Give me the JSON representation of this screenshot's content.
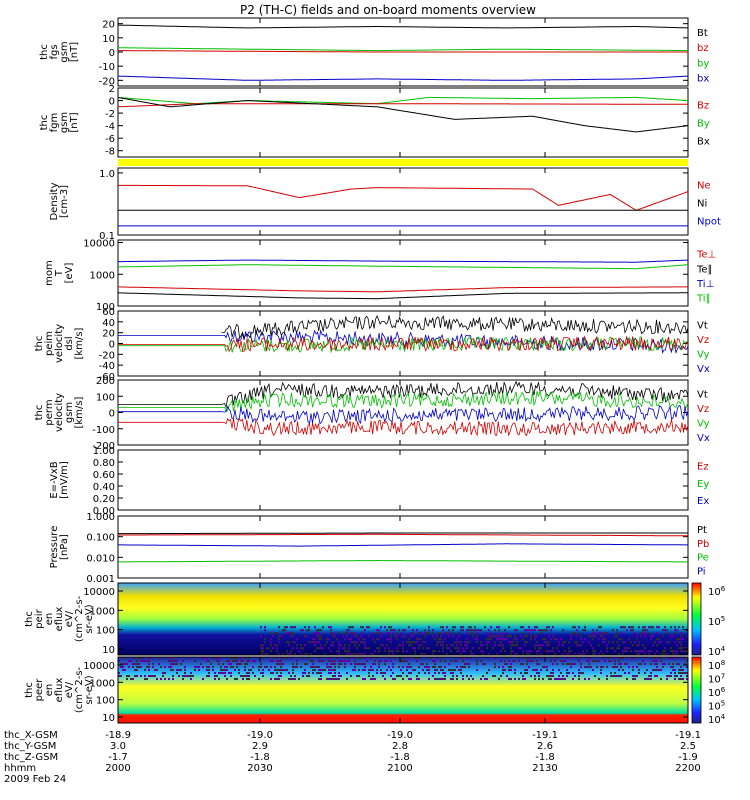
{
  "chart_data": {
    "type": "line",
    "title": "P2 (TH-C) fields and on-board moments overview",
    "panels": [
      {
        "name": "fgs",
        "ylabel_lines": [
          "thc",
          "fgs",
          "gsm",
          "[nT]"
        ],
        "yticks": [
          "20",
          "10",
          "0",
          "-10",
          "-20"
        ],
        "yrange": [
          -24,
          24
        ],
        "scale": "linear",
        "legend": [
          {
            "label": "Bt",
            "color": "#000000"
          },
          {
            "label": "bz",
            "color": "#d40000"
          },
          {
            "label": "by",
            "color": "#00c000"
          },
          {
            "label": "bx",
            "color": "#0000cc"
          }
        ],
        "series": [
          {
            "color": "#000000",
            "points": [
              [
                -18.9,
                19
              ],
              [
                -18.95,
                17
              ],
              [
                -19.0,
                18
              ],
              [
                -19.05,
                17
              ],
              [
                -19.1,
                18
              ],
              [
                -19.12,
                17
              ]
            ]
          },
          {
            "color": "#00c000",
            "points": [
              [
                -18.9,
                3
              ],
              [
                -19.0,
                1
              ],
              [
                -19.05,
                2
              ],
              [
                -19.12,
                1
              ]
            ]
          },
          {
            "color": "#d40000",
            "points": [
              [
                -18.9,
                1
              ],
              [
                -19.0,
                0
              ],
              [
                -19.12,
                0
              ]
            ]
          },
          {
            "color": "#0000cc",
            "points": [
              [
                -18.9,
                -17
              ],
              [
                -18.95,
                -20
              ],
              [
                -19.0,
                -19
              ],
              [
                -19.05,
                -20
              ],
              [
                -19.1,
                -19
              ],
              [
                -19.12,
                -17
              ]
            ]
          }
        ]
      },
      {
        "name": "fgm-dsl",
        "ylabel_lines": [
          "thc",
          "fgm",
          "gsm",
          "[nT]"
        ],
        "yticks": [
          "2",
          "0",
          "-2",
          "-4",
          "-6",
          "-8"
        ],
        "yrange": [
          -9,
          2
        ],
        "scale": "linear",
        "legend": [
          {
            "label": "Bz",
            "color": "#d40000"
          },
          {
            "label": "By",
            "color": "#00c000"
          },
          {
            "label": "Bx",
            "color": "#000000"
          }
        ],
        "series": [
          {
            "color": "#00c000",
            "points": [
              [
                -18.9,
                0.5
              ],
              [
                -18.93,
                -0.5
              ],
              [
                -18.95,
                0
              ],
              [
                -19.0,
                -0.5
              ],
              [
                -19.02,
                0.5
              ],
              [
                -19.06,
                0.3
              ],
              [
                -19.1,
                0.5
              ],
              [
                -19.12,
                0
              ]
            ]
          },
          {
            "color": "#d40000",
            "points": [
              [
                -18.9,
                -1
              ],
              [
                -18.93,
                -0.5
              ],
              [
                -19.0,
                -0.5
              ],
              [
                -19.12,
                -0.6
              ]
            ]
          },
          {
            "color": "#000000",
            "points": [
              [
                -18.9,
                0.5
              ],
              [
                -18.92,
                -1
              ],
              [
                -18.95,
                0
              ],
              [
                -19.0,
                -1
              ],
              [
                -19.03,
                -3
              ],
              [
                -19.06,
                -2.5
              ],
              [
                -19.08,
                -4
              ],
              [
                -19.1,
                -5
              ],
              [
                -19.12,
                -4
              ]
            ]
          }
        ]
      },
      {
        "name": "density",
        "ylabel_lines": [
          "Density",
          "[cm-3]"
        ],
        "yticks": [
          "1.0",
          "0.1"
        ],
        "yrange": [
          0.1,
          1.2
        ],
        "scale": "log",
        "legend": [
          {
            "label": "Ne",
            "color": "#d40000"
          },
          {
            "label": "Ni",
            "color": "#000000"
          },
          {
            "label": "Npot",
            "color": "#0000cc"
          }
        ],
        "series": [
          {
            "color": "#d40000",
            "points": [
              [
                -18.9,
                0.63
              ],
              [
                -18.95,
                0.62
              ],
              [
                -18.97,
                0.4
              ],
              [
                -18.99,
                0.55
              ],
              [
                -19.0,
                0.58
              ],
              [
                -19.06,
                0.55
              ],
              [
                -19.07,
                0.3
              ],
              [
                -19.09,
                0.45
              ],
              [
                -19.1,
                0.25
              ],
              [
                -19.12,
                0.5
              ]
            ]
          },
          {
            "color": "#000000",
            "points": [
              [
                -18.9,
                0.25
              ],
              [
                -19.0,
                0.25
              ],
              [
                -19.12,
                0.25
              ]
            ]
          },
          {
            "color": "#0000cc",
            "points": [
              [
                -18.9,
                0.14
              ],
              [
                -18.95,
                0.14
              ],
              [
                -19.0,
                0.14
              ],
              [
                -19.12,
                0.14
              ]
            ]
          }
        ]
      },
      {
        "name": "temperature",
        "ylabel_lines": [
          "mom",
          "T",
          "[eV]"
        ],
        "yticks": [
          "10000",
          "1000",
          "100"
        ],
        "yrange": [
          100,
          12000
        ],
        "scale": "log",
        "legend": [
          {
            "label": "Te⊥",
            "color": "#d40000"
          },
          {
            "label": "Te∥",
            "color": "#000000"
          },
          {
            "label": "Ti⊥",
            "color": "#0000cc"
          },
          {
            "label": "Ti∥",
            "color": "#00c000"
          }
        ],
        "series": [
          {
            "color": "#0000cc",
            "points": [
              [
                -18.9,
                2500
              ],
              [
                -18.95,
                2800
              ],
              [
                -19.0,
                2600
              ],
              [
                -19.1,
                2400
              ],
              [
                -19.12,
                2800
              ]
            ]
          },
          {
            "color": "#00c000",
            "points": [
              [
                -18.9,
                1700
              ],
              [
                -18.95,
                2000
              ],
              [
                -19.0,
                1800
              ],
              [
                -19.1,
                1500
              ],
              [
                -19.12,
                2000
              ]
            ]
          },
          {
            "color": "#d40000",
            "points": [
              [
                -18.9,
                400
              ],
              [
                -18.97,
                300
              ],
              [
                -19.0,
                280
              ],
              [
                -19.05,
                380
              ],
              [
                -19.12,
                400
              ]
            ]
          },
          {
            "color": "#000000",
            "points": [
              [
                -18.9,
                260
              ],
              [
                -18.97,
                180
              ],
              [
                -19.0,
                170
              ],
              [
                -19.05,
                250
              ],
              [
                -19.12,
                260
              ]
            ]
          }
        ]
      },
      {
        "name": "peim",
        "ylabel_lines": [
          "thc",
          "peim",
          "velocity",
          "dsl",
          "[km/s]"
        ],
        "yticks": [
          "60",
          "40",
          "20",
          "0",
          "-20",
          "-40",
          "-60"
        ],
        "yrange": [
          -60,
          60
        ],
        "scale": "linear",
        "legend": [
          {
            "label": "Vt",
            "color": "#000000"
          },
          {
            "label": "Vz",
            "color": "#d40000"
          },
          {
            "label": "Vy",
            "color": "#00c000"
          },
          {
            "label": "Vx",
            "color": "#0000cc"
          }
        ],
        "series": [
          {
            "color": "#0000cc",
            "points": [
              [
                -18.9,
                15
              ],
              [
                -18.94,
                15
              ],
              [
                -19.12,
                -5
              ]
            ]
          },
          {
            "color": "#000000",
            "points": [
              [
                -18.94,
                20
              ],
              [
                -19.0,
                40
              ],
              [
                -19.05,
                35
              ],
              [
                -19.12,
                30
              ]
            ]
          },
          {
            "color": "#00c000",
            "points": [
              [
                -18.9,
                -4
              ],
              [
                -18.94,
                -4
              ],
              [
                -19.12,
                0
              ]
            ]
          },
          {
            "color": "#d40000",
            "points": [
              [
                -18.9,
                -2
              ],
              [
                -18.94,
                -2
              ],
              [
                -19.12,
                0
              ]
            ]
          }
        ]
      },
      {
        "name": "perm",
        "ylabel_lines": [
          "thc",
          "perm",
          "velocity",
          "gsm",
          "[km/s]"
        ],
        "yticks": [
          "200",
          "100",
          "0",
          "-100",
          "-200"
        ],
        "yrange": [
          -200,
          200
        ],
        "scale": "linear",
        "legend": [
          {
            "label": "Vt",
            "color": "#000000"
          },
          {
            "label": "Vz",
            "color": "#d40000"
          },
          {
            "label": "Vy",
            "color": "#00c000"
          },
          {
            "label": "Vx",
            "color": "#0000cc"
          }
        ],
        "series": [
          {
            "color": "#000000",
            "points": [
              [
                -18.9,
                50
              ],
              [
                -18.94,
                50
              ],
              [
                -18.96,
                140
              ],
              [
                -19.0,
                130
              ],
              [
                -19.06,
                150
              ],
              [
                -19.12,
                100
              ]
            ]
          },
          {
            "color": "#00c000",
            "points": [
              [
                -18.9,
                30
              ],
              [
                -18.94,
                30
              ],
              [
                -18.96,
                80
              ],
              [
                -19.0,
                70
              ],
              [
                -19.06,
                90
              ],
              [
                -19.12,
                60
              ]
            ]
          },
          {
            "color": "#0000cc",
            "points": [
              [
                -18.9,
                5
              ],
              [
                -18.94,
                5
              ],
              [
                -18.96,
                -30
              ],
              [
                -19.0,
                -20
              ],
              [
                -19.12,
                0
              ]
            ]
          },
          {
            "color": "#d40000",
            "points": [
              [
                -18.9,
                -60
              ],
              [
                -18.94,
                -60
              ],
              [
                -18.96,
                -100
              ],
              [
                -19.0,
                -90
              ],
              [
                -19.06,
                -100
              ],
              [
                -19.12,
                -80
              ]
            ]
          }
        ]
      },
      {
        "name": "efield",
        "ylabel_lines": [
          "E=-VxB",
          "[mV/m]"
        ],
        "yticks": [
          "1.00",
          "0.80",
          "0.60",
          "0.40",
          "0.20",
          "0.00"
        ],
        "yrange": [
          0,
          1
        ],
        "scale": "linear",
        "legend": [
          {
            "label": "Ez",
            "color": "#d40000"
          },
          {
            "label": "Ey",
            "color": "#00c000"
          },
          {
            "label": "Ex",
            "color": "#0000cc"
          }
        ],
        "series": []
      },
      {
        "name": "pressure",
        "ylabel_lines": [
          "Pressure",
          "[nPa]"
        ],
        "yticks": [
          "1.000",
          "0.100",
          "0.010",
          "0.001"
        ],
        "yrange": [
          0.001,
          1.0
        ],
        "scale": "log",
        "legend": [
          {
            "label": "Pt",
            "color": "#000000"
          },
          {
            "label": "Pb",
            "color": "#d40000"
          },
          {
            "label": "Pe",
            "color": "#00c000"
          },
          {
            "label": "Pi",
            "color": "#0000cc"
          }
        ],
        "series": [
          {
            "color": "#000000",
            "points": [
              [
                -18.9,
                0.14
              ],
              [
                -19.0,
                0.15
              ],
              [
                -19.12,
                0.15
              ]
            ]
          },
          {
            "color": "#d40000",
            "points": [
              [
                -18.9,
                0.12
              ],
              [
                -19.0,
                0.13
              ],
              [
                -19.12,
                0.11
              ]
            ]
          },
          {
            "color": "#0000cc",
            "points": [
              [
                -18.9,
                0.04
              ],
              [
                -18.97,
                0.035
              ],
              [
                -19.05,
                0.045
              ],
              [
                -19.12,
                0.04
              ]
            ]
          },
          {
            "color": "#00c000",
            "points": [
              [
                -18.9,
                0.006
              ],
              [
                -19.0,
                0.007
              ],
              [
                -19.12,
                0.006
              ]
            ]
          }
        ]
      },
      {
        "name": "peir-spectrogram",
        "ylabel_lines": [
          "thc",
          "peir",
          "en",
          "eflux",
          "eV/",
          "(cm^2-s-",
          "sr-eV)"
        ],
        "yticks": [
          "10000",
          "1000",
          "100",
          "10"
        ],
        "colorbar_ticks": [
          "10^6",
          "10^5",
          "10^4"
        ],
        "type": "heatmap"
      },
      {
        "name": "peer-spectrogram",
        "ylabel_lines": [
          "thc",
          "peer",
          "en",
          "eflux",
          "eV/",
          "(cm^2-s-",
          "sr-eV)"
        ],
        "yticks": [
          "10000",
          "1000",
          "100",
          "10"
        ],
        "colorbar_ticks": [
          "10^8",
          "10^7",
          "10^6",
          "10^5",
          "10^4"
        ],
        "type": "heatmap"
      }
    ],
    "x_axis": {
      "range": [
        -18.9,
        -19.12
      ],
      "rows": [
        {
          "label": "thc_X-GSM",
          "values": [
            "-18.9",
            "-19.0",
            "-19.0",
            "-19.1",
            "-19.1"
          ]
        },
        {
          "label": "thc_Y-GSM",
          "values": [
            "3.0",
            "2.9",
            "2.8",
            "2.6",
            "2.5"
          ]
        },
        {
          "label": "thc_Z-GSM",
          "values": [
            "-1.7",
            "-1.8",
            "-1.8",
            "-1.8",
            "-1.9"
          ]
        },
        {
          "label": "hhmm",
          "values": [
            "2000",
            "2030",
            "2100",
            "2130",
            "2200"
          ]
        }
      ],
      "date": "2009 Feb 24"
    }
  }
}
